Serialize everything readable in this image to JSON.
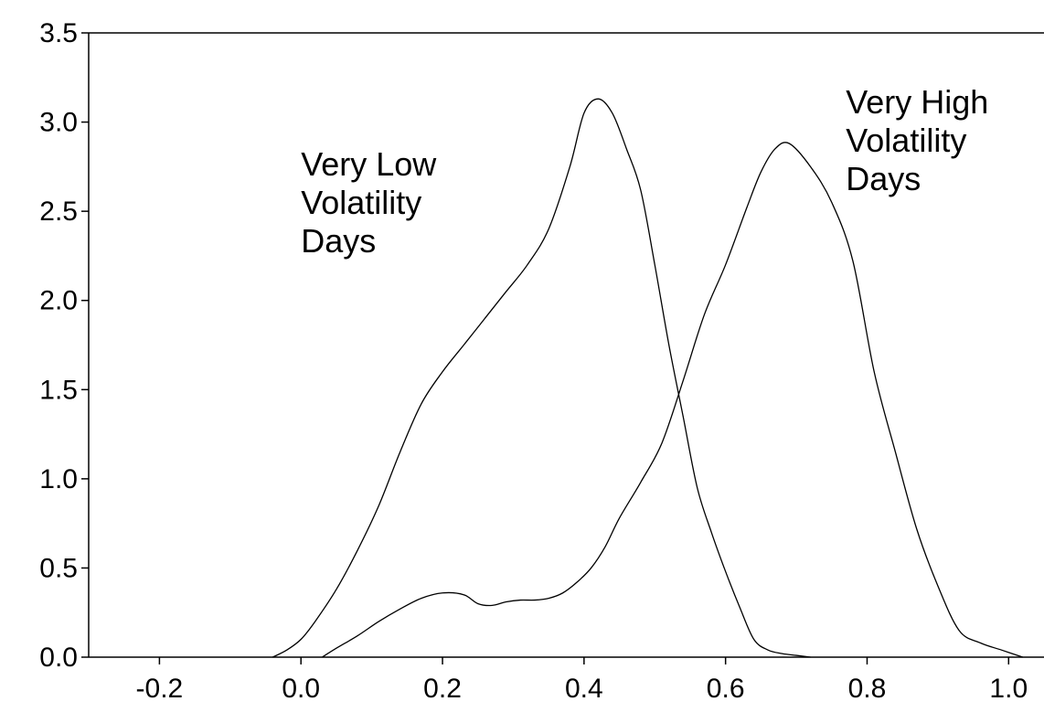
{
  "chart_data": {
    "type": "line",
    "title": "",
    "xlabel": "",
    "ylabel": "",
    "xlim": [
      -0.3,
      1.05
    ],
    "ylim": [
      0.0,
      3.5
    ],
    "x_ticks": [
      "-0.2",
      "0.0",
      "0.2",
      "0.4",
      "0.6",
      "0.8",
      "1.0"
    ],
    "x_tick_values": [
      -0.2,
      0.0,
      0.2,
      0.4,
      0.6,
      0.8,
      1.0
    ],
    "y_ticks": [
      "0.0",
      "0.5",
      "1.0",
      "1.5",
      "2.0",
      "2.5",
      "3.0",
      "3.5"
    ],
    "y_tick_values": [
      0.0,
      0.5,
      1.0,
      1.5,
      2.0,
      2.5,
      3.0,
      3.5
    ],
    "grid": false,
    "legend": "none",
    "annotations": [
      {
        "lines": [
          "Very Low",
          "Volatility",
          "Days"
        ],
        "x": 0.0,
        "y": 2.7
      },
      {
        "lines": [
          "Very High",
          "Volatility",
          "Days"
        ],
        "x": 0.77,
        "y": 3.05
      }
    ],
    "series": [
      {
        "x": [
          -0.04,
          -0.02,
          0.0,
          0.02,
          0.05,
          0.08,
          0.11,
          0.14,
          0.17,
          0.2,
          0.23,
          0.26,
          0.29,
          0.32,
          0.35,
          0.38,
          0.4,
          0.42,
          0.44,
          0.46,
          0.48,
          0.5,
          0.52,
          0.54,
          0.56,
          0.58,
          0.6,
          0.62,
          0.64,
          0.66,
          0.68,
          0.7,
          0.72
        ],
        "values": [
          0.0,
          0.04,
          0.1,
          0.2,
          0.38,
          0.6,
          0.85,
          1.15,
          1.42,
          1.6,
          1.75,
          1.9,
          2.05,
          2.2,
          2.4,
          2.75,
          3.05,
          3.13,
          3.05,
          2.85,
          2.62,
          2.2,
          1.75,
          1.35,
          0.95,
          0.7,
          0.48,
          0.28,
          0.1,
          0.04,
          0.02,
          0.01,
          0.0
        ]
      },
      {
        "x": [
          0.03,
          0.05,
          0.08,
          0.11,
          0.14,
          0.17,
          0.2,
          0.23,
          0.25,
          0.27,
          0.29,
          0.31,
          0.33,
          0.35,
          0.37,
          0.39,
          0.41,
          0.43,
          0.45,
          0.48,
          0.51,
          0.54,
          0.57,
          0.6,
          0.63,
          0.65,
          0.67,
          0.69,
          0.72,
          0.75,
          0.78,
          0.81,
          0.84,
          0.87,
          0.9,
          0.93,
          0.96,
          0.99,
          1.02
        ],
        "values": [
          0.0,
          0.05,
          0.12,
          0.2,
          0.27,
          0.33,
          0.36,
          0.35,
          0.3,
          0.29,
          0.31,
          0.32,
          0.32,
          0.33,
          0.36,
          0.42,
          0.5,
          0.62,
          0.78,
          0.98,
          1.2,
          1.55,
          1.92,
          2.2,
          2.52,
          2.72,
          2.85,
          2.88,
          2.75,
          2.55,
          2.22,
          1.6,
          1.15,
          0.72,
          0.4,
          0.15,
          0.08,
          0.04,
          0.0
        ]
      }
    ]
  }
}
